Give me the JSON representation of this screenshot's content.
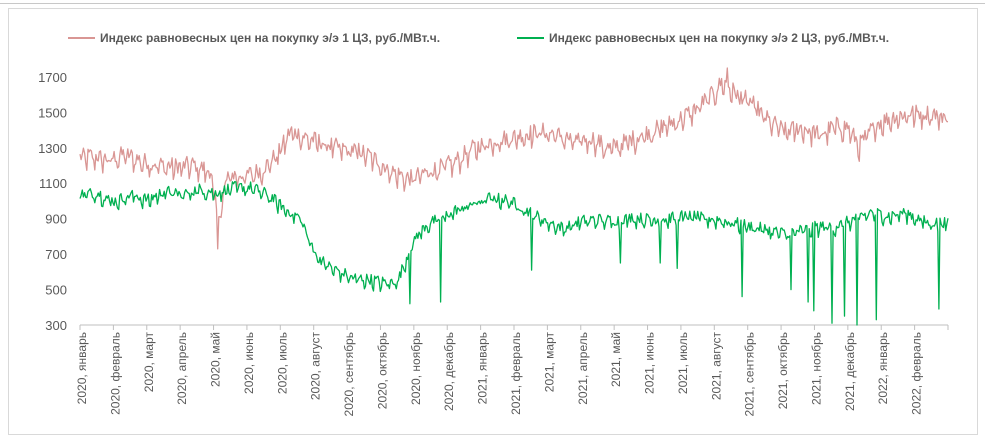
{
  "chart_data": {
    "type": "line",
    "title": "",
    "xlabel": "",
    "ylabel": "",
    "ylim": [
      300,
      1750
    ],
    "yticks": [
      300,
      500,
      700,
      900,
      1100,
      1300,
      1500,
      1700
    ],
    "grid": false,
    "legend_position": "top",
    "x_tick_labels": [
      "2020, январь",
      "2020, февраль",
      "2020, март",
      "2020, апрель",
      "2020, май",
      "2020, июнь",
      "2020, июль",
      "2020, август",
      "2020, сентябрь",
      "2020, октябрь",
      "2020, ноябрь",
      "2020, декабрь",
      "2021, январь",
      "2021, февраль",
      "2021, март",
      "2021, апрель",
      "2021, май",
      "2021, июнь",
      "2021, июль",
      "2021, август",
      "2021, сентябрь",
      "2021, октябрь",
      "2021, ноябрь",
      "2021, декабрь",
      "2022, январь",
      "2022, февраль"
    ],
    "x_approx_daily_resolution": true,
    "series": [
      {
        "name": "Индекс равновесных цен на покупку э/э 1 ЦЗ, руб./МВт.ч.",
        "color": "#d99694",
        "anchors": [
          [
            0,
            1250
          ],
          [
            10,
            1260
          ],
          [
            25,
            1240
          ],
          [
            40,
            1270
          ],
          [
            55,
            1230
          ],
          [
            70,
            1210
          ],
          [
            85,
            1200
          ],
          [
            100,
            1210
          ],
          [
            115,
            1170
          ],
          [
            121,
            900
          ],
          [
            130,
            1150
          ],
          [
            145,
            1150
          ],
          [
            160,
            1180
          ],
          [
            175,
            1280
          ],
          [
            185,
            1400
          ],
          [
            200,
            1360
          ],
          [
            215,
            1330
          ],
          [
            230,
            1300
          ],
          [
            245,
            1290
          ],
          [
            260,
            1240
          ],
          [
            275,
            1170
          ],
          [
            290,
            1130
          ],
          [
            305,
            1170
          ],
          [
            320,
            1200
          ],
          [
            330,
            1230
          ],
          [
            345,
            1300
          ],
          [
            360,
            1340
          ],
          [
            375,
            1360
          ],
          [
            390,
            1380
          ],
          [
            405,
            1400
          ],
          [
            420,
            1380
          ],
          [
            435,
            1340
          ],
          [
            450,
            1360
          ],
          [
            465,
            1300
          ],
          [
            480,
            1340
          ],
          [
            495,
            1380
          ],
          [
            510,
            1420
          ],
          [
            525,
            1460
          ],
          [
            540,
            1520
          ],
          [
            555,
            1600
          ],
          [
            565,
            1680
          ],
          [
            575,
            1620
          ],
          [
            590,
            1560
          ],
          [
            605,
            1460
          ],
          [
            620,
            1400
          ],
          [
            635,
            1420
          ],
          [
            650,
            1380
          ],
          [
            665,
            1430
          ],
          [
            675,
            1420
          ],
          [
            685,
            1320
          ],
          [
            700,
            1440
          ],
          [
            715,
            1480
          ],
          [
            730,
            1500
          ],
          [
            745,
            1500
          ],
          [
            763,
            1480
          ]
        ],
        "min_point": [
          121,
          730
        ],
        "max_point": [
          569,
          1750
        ],
        "noise_amplitude": 90
      },
      {
        "name": "Индекс равновесных цен на покупку э/э 2 ЦЗ, руб./МВт.ч.",
        "color": "#00b050",
        "anchors": [
          [
            0,
            1040
          ],
          [
            15,
            1050
          ],
          [
            30,
            1000
          ],
          [
            45,
            1040
          ],
          [
            60,
            1010
          ],
          [
            75,
            1060
          ],
          [
            90,
            1040
          ],
          [
            105,
            1070
          ],
          [
            120,
            1050
          ],
          [
            135,
            1080
          ],
          [
            150,
            1080
          ],
          [
            165,
            1040
          ],
          [
            180,
            960
          ],
          [
            195,
            900
          ],
          [
            200,
            800
          ],
          [
            210,
            680
          ],
          [
            220,
            630
          ],
          [
            230,
            600
          ],
          [
            240,
            570
          ],
          [
            255,
            560
          ],
          [
            270,
            540
          ],
          [
            280,
            560
          ],
          [
            285,
            650
          ],
          [
            295,
            800
          ],
          [
            305,
            870
          ],
          [
            315,
            900
          ],
          [
            330,
            950
          ],
          [
            345,
            990
          ],
          [
            360,
            1020
          ],
          [
            375,
            1010
          ],
          [
            385,
            980
          ],
          [
            395,
            940
          ],
          [
            410,
            890
          ],
          [
            425,
            850
          ],
          [
            440,
            890
          ],
          [
            455,
            900
          ],
          [
            470,
            890
          ],
          [
            485,
            910
          ],
          [
            500,
            900
          ],
          [
            515,
            900
          ],
          [
            530,
            920
          ],
          [
            545,
            910
          ],
          [
            560,
            900
          ],
          [
            575,
            880
          ],
          [
            590,
            860
          ],
          [
            605,
            840
          ],
          [
            620,
            820
          ],
          [
            635,
            840
          ],
          [
            650,
            860
          ],
          [
            665,
            860
          ],
          [
            680,
            900
          ],
          [
            695,
            940
          ],
          [
            710,
            920
          ],
          [
            725,
            940
          ],
          [
            745,
            880
          ],
          [
            763,
            880
          ]
        ],
        "dips": [
          [
            290,
            420
          ],
          [
            317,
            430
          ],
          [
            397,
            610
          ],
          [
            475,
            650
          ],
          [
            510,
            650
          ],
          [
            525,
            620
          ],
          [
            582,
            460
          ],
          [
            625,
            500
          ],
          [
            640,
            430
          ],
          [
            645,
            380
          ],
          [
            661,
            310
          ],
          [
            672,
            350
          ],
          [
            683,
            290
          ],
          [
            700,
            330
          ],
          [
            755,
            390
          ]
        ],
        "noise_amplitude": 60
      }
    ]
  }
}
